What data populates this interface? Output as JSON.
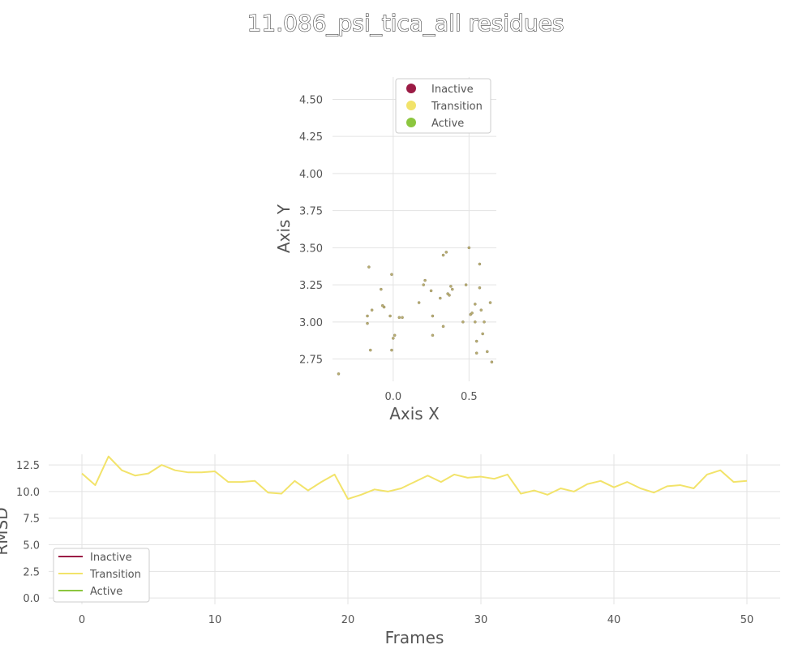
{
  "figure": {
    "title": "11.086_psi_tica_all residues"
  },
  "colors": {
    "inactive": "#9b1b45",
    "transition": "#f2e36a",
    "active": "#8cc63f",
    "point": "#b8ad72"
  },
  "chart_data": [
    {
      "type": "scatter",
      "xlabel": "Axis X",
      "ylabel": "Axis Y",
      "xlim": [
        -0.4,
        0.68
      ],
      "ylim": [
        2.6,
        4.65
      ],
      "xticks": [
        "0.0",
        "0.5"
      ],
      "xtick_values": [
        0.0,
        0.5
      ],
      "yticks": [
        "2.75",
        "3.00",
        "3.25",
        "3.50",
        "3.75",
        "4.00",
        "4.25",
        "4.50"
      ],
      "ytick_values": [
        2.75,
        3.0,
        3.25,
        3.5,
        3.75,
        4.0,
        4.25,
        4.5
      ],
      "grid": true,
      "legend": "top-right",
      "series": [
        {
          "name": "Inactive",
          "color_key": "inactive",
          "points": []
        },
        {
          "name": "Transition",
          "color_key": "transition",
          "points": []
        },
        {
          "name": "Active",
          "color_key": "active",
          "points": []
        }
      ],
      "points": [
        [
          -0.36,
          2.65
        ],
        [
          -0.16,
          3.37
        ],
        [
          -0.15,
          2.81
        ],
        [
          -0.17,
          3.04
        ],
        [
          -0.17,
          2.99
        ],
        [
          -0.14,
          3.08
        ],
        [
          -0.08,
          3.22
        ],
        [
          -0.07,
          3.11
        ],
        [
          -0.06,
          3.1
        ],
        [
          -0.02,
          3.04
        ],
        [
          -0.01,
          2.81
        ],
        [
          0.0,
          2.89
        ],
        [
          0.01,
          2.91
        ],
        [
          -0.01,
          3.32
        ],
        [
          0.04,
          3.03
        ],
        [
          0.06,
          3.03
        ],
        [
          0.17,
          3.13
        ],
        [
          0.2,
          3.25
        ],
        [
          0.21,
          3.28
        ],
        [
          0.25,
          3.21
        ],
        [
          0.26,
          3.04
        ],
        [
          0.26,
          2.91
        ],
        [
          0.31,
          3.16
        ],
        [
          0.33,
          2.97
        ],
        [
          0.33,
          3.45
        ],
        [
          0.35,
          3.47
        ],
        [
          0.36,
          3.19
        ],
        [
          0.37,
          3.18
        ],
        [
          0.38,
          3.24
        ],
        [
          0.39,
          3.22
        ],
        [
          0.46,
          3.0
        ],
        [
          0.48,
          3.25
        ],
        [
          0.5,
          3.5
        ],
        [
          0.51,
          3.05
        ],
        [
          0.52,
          3.06
        ],
        [
          0.54,
          3.12
        ],
        [
          0.54,
          3.0
        ],
        [
          0.55,
          2.79
        ],
        [
          0.55,
          2.87
        ],
        [
          0.57,
          3.39
        ],
        [
          0.57,
          3.23
        ],
        [
          0.58,
          3.08
        ],
        [
          0.59,
          2.92
        ],
        [
          0.6,
          3.0
        ],
        [
          0.62,
          2.8
        ],
        [
          0.64,
          3.13
        ],
        [
          0.65,
          2.73
        ]
      ]
    },
    {
      "type": "line",
      "xlabel": "Frames",
      "ylabel": "RMSD",
      "xlim": [
        -2.5,
        52.5
      ],
      "ylim": [
        -0.6,
        13.5
      ],
      "xticks": [
        "0",
        "10",
        "20",
        "30",
        "40",
        "50"
      ],
      "xtick_values": [
        0,
        10,
        20,
        30,
        40,
        50
      ],
      "yticks": [
        "0.0",
        "2.5",
        "5.0",
        "7.5",
        "10.0",
        "12.5"
      ],
      "ytick_values": [
        0,
        2.5,
        5.0,
        7.5,
        10.0,
        12.5
      ],
      "grid": true,
      "legend": "bottom-left",
      "series": [
        {
          "name": "Inactive",
          "color_key": "inactive",
          "values": []
        },
        {
          "name": "Transition",
          "color_key": "transition",
          "x": [
            0,
            1,
            2,
            3,
            4,
            5,
            6,
            7,
            8,
            9,
            10,
            11,
            12,
            13,
            14,
            15,
            16,
            17,
            18,
            19,
            20,
            21,
            22,
            23,
            24,
            25,
            26,
            27,
            28,
            29,
            30,
            31,
            32,
            33,
            34,
            35,
            36,
            37,
            38,
            39,
            40,
            41,
            42,
            43,
            44,
            45,
            46,
            47,
            48,
            49,
            50
          ],
          "values": [
            11.7,
            10.6,
            13.3,
            12.0,
            11.5,
            11.7,
            12.5,
            12.0,
            11.8,
            11.8,
            11.9,
            10.9,
            10.9,
            11.0,
            9.9,
            9.8,
            11.0,
            10.1,
            10.9,
            11.6,
            9.3,
            9.7,
            10.2,
            10.0,
            10.3,
            10.9,
            11.5,
            10.9,
            11.6,
            11.3,
            11.4,
            11.2,
            11.6,
            9.8,
            10.1,
            9.7,
            10.3,
            10.0,
            10.7,
            11.0,
            10.4,
            10.9,
            10.3,
            9.9,
            10.5,
            10.6,
            10.3,
            11.6,
            12.0,
            10.9,
            11.0
          ]
        },
        {
          "name": "Active",
          "color_key": "active",
          "values": []
        }
      ]
    }
  ]
}
